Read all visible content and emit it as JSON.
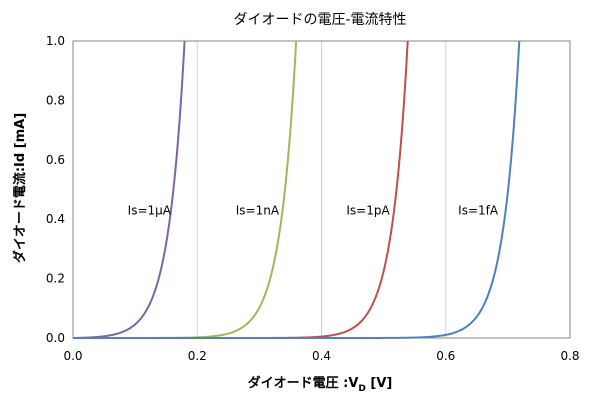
{
  "chart_data": {
    "type": "line",
    "title": "ダイオードの電圧-電流特性",
    "xlabel_main": "ダイオード電圧 :V",
    "xlabel_sub": "D",
    "xlabel_unit": " [V]",
    "ylabel": "ダイオード電流:Id [mA]",
    "xlim": [
      0,
      0.8
    ],
    "ylim": [
      0,
      1.0
    ],
    "x_ticks": [
      0,
      0.2,
      0.4,
      0.6,
      0.8
    ],
    "x_tick_labels": [
      "0.0",
      "0.2",
      "0.4",
      "0.6",
      "0.8"
    ],
    "y_ticks": [
      0,
      0.2,
      0.4,
      0.6,
      0.8,
      1.0
    ],
    "y_tick_labels": [
      "0.0",
      "0.2",
      "0.4",
      "0.6",
      "0.8",
      "1.0"
    ],
    "grid": "vertical",
    "series": [
      {
        "name": "Is=1μA",
        "color": "#8064a2",
        "is_mA": 0.001,
        "vt": 0.026,
        "label_at": [
          0.088,
          0.43
        ]
      },
      {
        "name": "Is=1nA",
        "color": "#9bbb59",
        "is_mA": 1e-06,
        "vt": 0.026,
        "label_at": [
          0.262,
          0.43
        ]
      },
      {
        "name": "Is=1pA",
        "color": "#c0504d",
        "is_mA": 1e-09,
        "vt": 0.026,
        "label_at": [
          0.44,
          0.43
        ]
      },
      {
        "name": "Is=1fA",
        "color": "#4f81bd",
        "is_mA": 1e-12,
        "vt": 0.026,
        "label_at": [
          0.62,
          0.43
        ]
      }
    ]
  }
}
